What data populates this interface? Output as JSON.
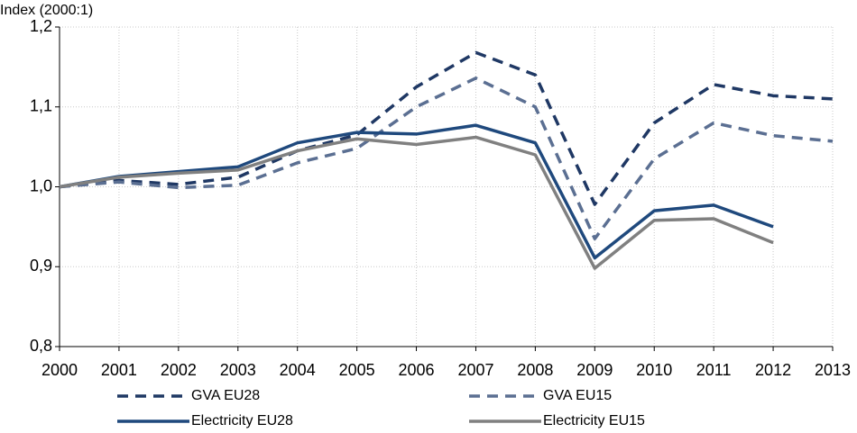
{
  "chart_data": {
    "type": "line",
    "y_axis_label": "Index (2000:1)",
    "x": [
      2000,
      2001,
      2002,
      2003,
      2004,
      2005,
      2006,
      2007,
      2008,
      2009,
      2010,
      2011,
      2012,
      2013
    ],
    "xlim": [
      2000,
      2013
    ],
    "xticks": [
      2000,
      2001,
      2002,
      2003,
      2004,
      2005,
      2006,
      2007,
      2008,
      2009,
      2010,
      2011,
      2012,
      2013
    ],
    "ylim": [
      0.8,
      1.2
    ],
    "yticks": [
      {
        "value": 0.8,
        "label": "0,8"
      },
      {
        "value": 0.9,
        "label": "0,9"
      },
      {
        "value": 1.0,
        "label": "1,0"
      },
      {
        "value": 1.1,
        "label": "1,1"
      },
      {
        "value": 1.2,
        "label": "1,2"
      }
    ],
    "grid": true,
    "series": [
      {
        "name": "GVA EU28",
        "color": "#1f3864",
        "style": "dashed",
        "values": [
          1.0,
          1.008,
          1.003,
          1.012,
          1.045,
          1.065,
          1.125,
          1.168,
          1.14,
          0.978,
          1.08,
          1.128,
          1.114,
          1.11
        ]
      },
      {
        "name": "GVA EU15",
        "color": "#5b6f92",
        "style": "dashed",
        "values": [
          1.0,
          1.006,
          0.999,
          1.002,
          1.03,
          1.048,
          1.1,
          1.136,
          1.1,
          0.935,
          1.035,
          1.08,
          1.064,
          1.057
        ]
      },
      {
        "name": "Electricity EU28",
        "color": "#1f497d",
        "style": "solid",
        "values": [
          1.0,
          1.013,
          1.019,
          1.025,
          1.055,
          1.068,
          1.066,
          1.077,
          1.055,
          0.911,
          0.97,
          0.977,
          0.95,
          null
        ]
      },
      {
        "name": "Electricity EU15",
        "color": "#808080",
        "style": "solid",
        "values": [
          1.0,
          1.012,
          1.017,
          1.021,
          1.045,
          1.06,
          1.053,
          1.062,
          1.04,
          0.898,
          0.958,
          0.96,
          0.93,
          null
        ]
      }
    ]
  }
}
